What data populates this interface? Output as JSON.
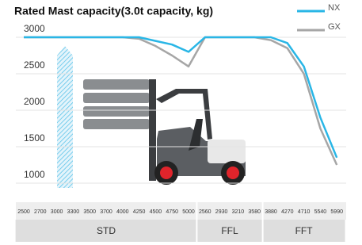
{
  "chart_data": {
    "type": "line",
    "title": "Rated Mast capacity(3.0t capacity, kg)",
    "category_groups": [
      {
        "label": "STD",
        "categories": [
          "2500",
          "2700",
          "3000",
          "3300",
          "3500",
          "3700",
          "4000",
          "4250",
          "4500",
          "4750",
          "5000"
        ]
      },
      {
        "label": "FFL",
        "categories": [
          "2560",
          "2930",
          "3210",
          "3580"
        ]
      },
      {
        "label": "FFT",
        "categories": [
          "3880",
          "4270",
          "4710",
          "5540",
          "5990"
        ]
      }
    ],
    "series": [
      {
        "name": "NX",
        "color": "#29b6e6",
        "values": [
          3000,
          3000,
          3000,
          3000,
          3000,
          3000,
          3000,
          3000,
          2950,
          2900,
          2800,
          3000,
          3000,
          3000,
          3000,
          3000,
          2920,
          2600,
          1900,
          1350
        ]
      },
      {
        "name": "GX",
        "color": "#a6a6a6",
        "values": [
          3000,
          3000,
          3000,
          3000,
          3000,
          3000,
          3000,
          2980,
          2880,
          2750,
          2600,
          3000,
          3000,
          3000,
          3000,
          2960,
          2850,
          2500,
          1750,
          1250
        ]
      }
    ],
    "ylim": [
      1000,
      3000
    ],
    "yticks": [
      1000,
      1500,
      2000,
      2500,
      3000
    ],
    "grid": true,
    "legend": "top-right"
  }
}
